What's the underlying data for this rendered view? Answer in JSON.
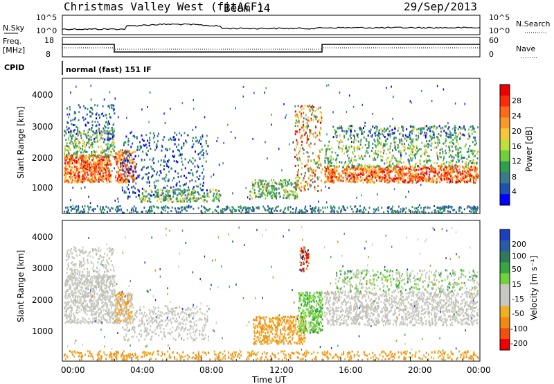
{
  "header": {
    "title": "Christmas Valley West (fitACF)",
    "beam": "Beam 14",
    "date": "29/Sep/2013"
  },
  "noise_panel": {
    "left_label": "N.Sky",
    "right_label": "N.Search",
    "left_ticks": [
      "10^5",
      "10^0"
    ],
    "right_ticks": [
      "10^5",
      "10^0"
    ]
  },
  "freq_panel": {
    "left_label_1": "Freq.",
    "left_label_2": "[MHz]",
    "left_ticks": [
      "18",
      "8"
    ],
    "right_label": "Nave",
    "right_ticks": [
      "60",
      "0"
    ]
  },
  "cpid": {
    "label": "CPID",
    "value": "normal (fast) 151 IF"
  },
  "chart_data": [
    {
      "type": "heatmap",
      "ylabel": "Slant Range [km]",
      "yticks": [
        "1000",
        "2000",
        "3000",
        "4000"
      ],
      "ylim": [
        200,
        4500
      ],
      "colorbar_label": "Power [dB]",
      "colorbar_ticks": [
        "4",
        "8",
        "12",
        "16",
        "20",
        "24",
        "28"
      ],
      "colorbar_colors": [
        "#0000ff",
        "#1f4fb0",
        "#3a7a8a",
        "#2f9e4f",
        "#6fcf3f",
        "#bfe03a",
        "#f7c73a",
        "#f79a2a",
        "#ff6a1a",
        "#ff2a0a",
        "#ee0000"
      ]
    },
    {
      "type": "heatmap",
      "ylabel": "Slant Range [km]",
      "yticks": [
        "1000",
        "2000",
        "3000",
        "4000"
      ],
      "ylim": [
        200,
        4500
      ],
      "colorbar_label": "Velocity [m s⁻¹]",
      "colorbar_ticks": [
        "200",
        "100",
        "50",
        "15",
        "-15",
        "-50",
        "-100",
        "-200"
      ],
      "colorbar_colors": [
        "#1a3fbf",
        "#2a5aa8",
        "#2e7a5a",
        "#3aa640",
        "#6fd23a",
        "#c8c8c0",
        "#c8c8c0",
        "#f0b020",
        "#f08a10",
        "#f05010",
        "#ee0000"
      ]
    }
  ],
  "x_axis": {
    "ticks": [
      "00:00",
      "04:00",
      "08:00",
      "12:00",
      "16:00",
      "20:00",
      "00:00"
    ],
    "label": "Time UT"
  }
}
